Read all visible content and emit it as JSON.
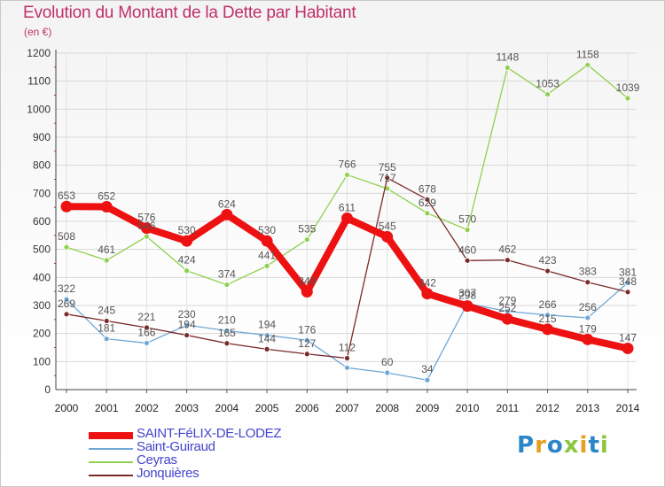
{
  "title": "Evolution du Montant de la Dette par Habitant",
  "subtitle": "(en €)",
  "brand": {
    "name": "Proxiti",
    "letters": [
      "P",
      "r",
      "o",
      "x",
      "i",
      "t",
      "i"
    ],
    "colors": [
      "#2b86c8",
      "#e6a020",
      "#2b86c8",
      "#8cc63f",
      "#e6a020",
      "#2b86c8",
      "#8cc63f"
    ]
  },
  "chart_data": {
    "type": "line",
    "title": "Evolution du Montant de la Dette par Habitant",
    "ylabel": "(en €)",
    "xlabel": "",
    "x": [
      2000,
      2001,
      2002,
      2003,
      2004,
      2005,
      2006,
      2007,
      2008,
      2009,
      2010,
      2011,
      2012,
      2013,
      2014
    ],
    "ylim": [
      0,
      1200
    ],
    "yticks": [
      0,
      100,
      200,
      300,
      400,
      500,
      600,
      700,
      800,
      900,
      1000,
      1100,
      1200
    ],
    "grid": true,
    "legend_position": "bottom-left",
    "series": [
      {
        "name": "SAINT-FéLIX-DE-LODEZ",
        "color": "#ee1111",
        "emphasis": true,
        "values": [
          653,
          652,
          576,
          530,
          624,
          530,
          349,
          611,
          545,
          342,
          298,
          252,
          215,
          179,
          147
        ],
        "labels": [
          "653",
          "652",
          "576",
          "530",
          "624",
          "530",
          "349",
          "611",
          "545",
          "342",
          "298",
          "252",
          "215",
          "179",
          "147"
        ]
      },
      {
        "name": "Saint-Guiraud",
        "color": "#6fa8d6",
        "values": [
          322,
          181,
          166,
          230,
          210,
          194,
          176,
          78,
          60,
          34,
          307,
          279,
          266,
          256,
          381
        ],
        "labels": [
          "322",
          "181",
          "166",
          "230",
          "210",
          "194",
          "176",
          "",
          "60",
          "34",
          "307",
          "279",
          "266",
          "256",
          "381"
        ]
      },
      {
        "name": "Ceyras",
        "color": "#8fd14f",
        "values": [
          508,
          461,
          546,
          424,
          374,
          441,
          535,
          766,
          717,
          629,
          570,
          1148,
          1053,
          1158,
          1039
        ],
        "labels": [
          "508",
          "461",
          "546",
          "424",
          "374",
          "441",
          "535",
          "766",
          "717",
          "629",
          "570",
          "1148",
          "1053",
          "1158",
          "1039"
        ]
      },
      {
        "name": "Jonquières",
        "color": "#7a2a2a",
        "values": [
          269,
          245,
          221,
          194,
          165,
          144,
          127,
          112,
          755,
          678,
          460,
          462,
          423,
          383,
          348
        ],
        "labels": [
          "269",
          "245",
          "221",
          "194",
          "165",
          "144",
          "127",
          "112",
          "755",
          "678",
          "460",
          "462",
          "423",
          "383",
          "348"
        ]
      }
    ]
  }
}
